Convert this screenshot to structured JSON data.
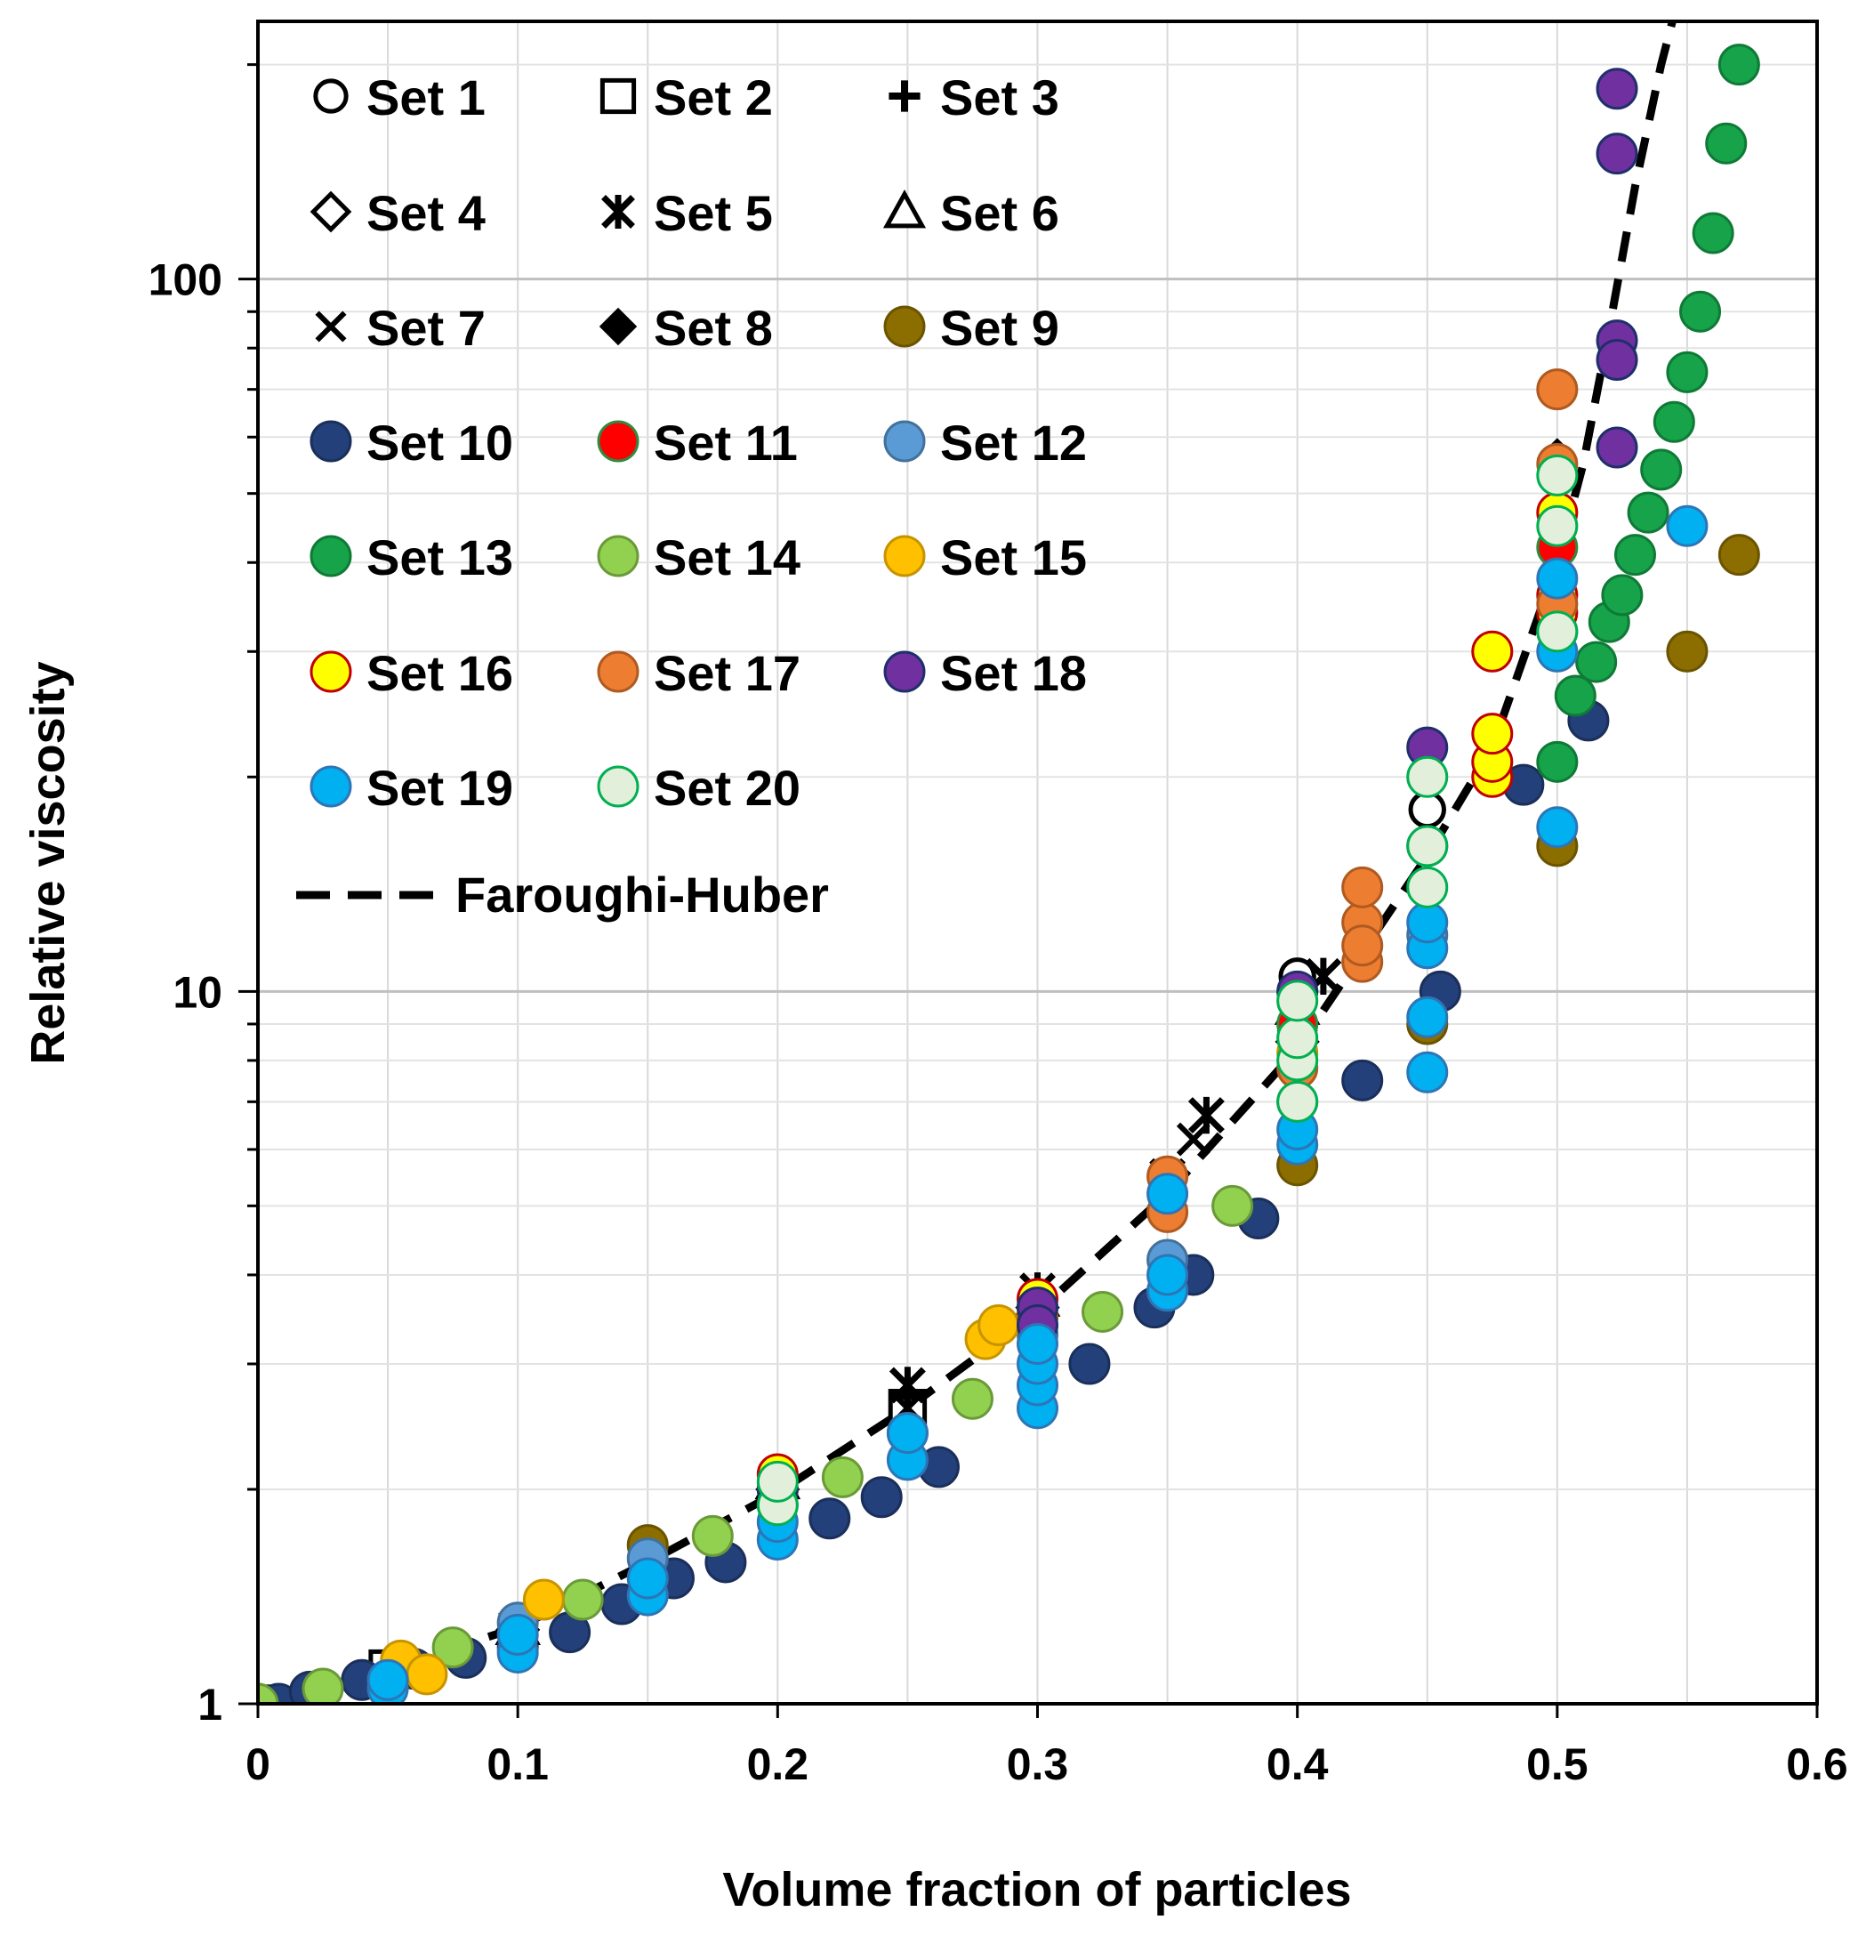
{
  "chart_data": {
    "type": "scatter",
    "title": "",
    "xlabel": "Volume fraction of particles",
    "ylabel": "Relative viscosity",
    "xlim": [
      0,
      0.6
    ],
    "ylim": [
      1,
      230
    ],
    "yscale": "log",
    "grid": true,
    "legend_position": "top-left",
    "x_ticks": [
      0,
      0.1,
      0.2,
      0.3,
      0.4,
      0.5,
      0.6
    ],
    "x_tick_labels": [
      "0",
      "0.1",
      "0.2",
      "0.3",
      "0.4",
      "0.5",
      "0.6"
    ],
    "y_ticks": [
      1,
      10,
      100
    ],
    "y_tick_labels": [
      "1",
      "10",
      "100"
    ],
    "series": [
      {
        "name": "Set 1",
        "marker": "circle-open",
        "fill": "#ffffff",
        "stroke": "#000000",
        "points": [
          [
            0,
            1
          ],
          [
            0.1,
            1.25
          ],
          [
            0.2,
            1.95
          ],
          [
            0.3,
            3.6
          ],
          [
            0.4,
            10.5
          ],
          [
            0.45,
            18
          ]
        ]
      },
      {
        "name": "Set 2",
        "marker": "square-open",
        "fill": "#ffffff",
        "stroke": "#000000",
        "points": [
          [
            0,
            1
          ],
          [
            0.05,
            1.12
          ],
          [
            0.1,
            1.26
          ],
          [
            0.15,
            1.6
          ],
          [
            0.2,
            2.0
          ],
          [
            0.25,
            2.6
          ],
          [
            0.3,
            3.5
          ]
        ]
      },
      {
        "name": "Set 3",
        "marker": "plus",
        "fill": "#000000",
        "stroke": "#000000",
        "points": [
          [
            0.1,
            1.3
          ],
          [
            0.15,
            1.62
          ],
          [
            0.2,
            2.0
          ],
          [
            0.25,
            2.7
          ],
          [
            0.3,
            3.7
          ]
        ]
      },
      {
        "name": "Set 4",
        "marker": "diamond-open",
        "fill": "#ffffff",
        "stroke": "#000000",
        "points": [
          [
            0.1,
            1.27
          ],
          [
            0.2,
            2.0
          ],
          [
            0.3,
            3.6
          ],
          [
            0.4,
            8.5
          ]
        ]
      },
      {
        "name": "Set 5",
        "marker": "asterisk",
        "fill": "#000000",
        "stroke": "#000000",
        "points": [
          [
            0.15,
            1.65
          ],
          [
            0.25,
            2.8
          ],
          [
            0.3,
            3.8
          ],
          [
            0.35,
            5.5
          ],
          [
            0.365,
            6.7
          ],
          [
            0.41,
            10.5
          ]
        ]
      },
      {
        "name": "Set 6",
        "marker": "triangle-open",
        "fill": "#ffffff",
        "stroke": "#000000",
        "points": [
          [
            0.1,
            1.28
          ],
          [
            0.2,
            2.05
          ],
          [
            0.3,
            3.7
          ],
          [
            0.4,
            9.5
          ]
        ]
      },
      {
        "name": "Set 7",
        "marker": "x",
        "fill": "#000000",
        "stroke": "#000000",
        "points": [
          [
            0.1,
            1.25
          ],
          [
            0.15,
            1.55
          ],
          [
            0.25,
            2.6
          ],
          [
            0.35,
            5.2
          ],
          [
            0.36,
            6.2
          ]
        ]
      },
      {
        "name": "Set 8",
        "marker": "diamond",
        "fill": "#000000",
        "stroke": "#000000",
        "points": [
          [
            0.2,
            1.95
          ],
          [
            0.3,
            3.5
          ],
          [
            0.35,
            5.0
          ],
          [
            0.4,
            8.8
          ],
          [
            0.5,
            56
          ]
        ]
      },
      {
        "name": "Set 9",
        "marker": "circle",
        "fill": "#8c6d00",
        "stroke": "#6b5400",
        "points": [
          [
            0,
            1
          ],
          [
            0.15,
            1.67
          ],
          [
            0.3,
            3.5
          ],
          [
            0.4,
            5.7
          ],
          [
            0.45,
            9
          ],
          [
            0.5,
            16
          ],
          [
            0.55,
            30
          ],
          [
            0.57,
            41
          ]
        ]
      },
      {
        "name": "Set 10",
        "marker": "circle",
        "fill": "#24407a",
        "stroke": "#1a2f5a",
        "points": [
          [
            0.008,
            1.0
          ],
          [
            0.02,
            1.04
          ],
          [
            0.04,
            1.08
          ],
          [
            0.06,
            1.12
          ],
          [
            0.08,
            1.16
          ],
          [
            0.1,
            1.2
          ],
          [
            0.12,
            1.26
          ],
          [
            0.14,
            1.38
          ],
          [
            0.16,
            1.5
          ],
          [
            0.18,
            1.58
          ],
          [
            0.22,
            1.82
          ],
          [
            0.24,
            1.95
          ],
          [
            0.262,
            2.15
          ],
          [
            0.32,
            3.0
          ],
          [
            0.345,
            3.6
          ],
          [
            0.36,
            4.0
          ],
          [
            0.385,
            4.8
          ],
          [
            0.425,
            7.5
          ],
          [
            0.455,
            10.0
          ],
          [
            0.487,
            19.5
          ],
          [
            0.512,
            24
          ]
        ]
      },
      {
        "name": "Set 11",
        "marker": "circle",
        "fill": "#ff0000",
        "stroke": "#2e8b3e",
        "points": [
          [
            0.2,
            2.0
          ],
          [
            0.3,
            3.6
          ],
          [
            0.4,
            9.0
          ],
          [
            0.5,
            42
          ]
        ]
      },
      {
        "name": "Set 12",
        "marker": "circle",
        "fill": "#5b9bd5",
        "stroke": "#41719c",
        "points": [
          [
            0.1,
            1.3
          ],
          [
            0.15,
            1.6
          ],
          [
            0.2,
            1.9
          ],
          [
            0.25,
            2.4
          ],
          [
            0.3,
            3.3
          ],
          [
            0.35,
            4.2
          ],
          [
            0.4,
            7.0
          ],
          [
            0.45,
            12
          ],
          [
            0.5,
            32
          ]
        ]
      },
      {
        "name": "Set 13",
        "marker": "circle",
        "fill": "#16a34a",
        "stroke": "#0f7a36",
        "points": [
          [
            0.5,
            21
          ],
          [
            0.507,
            26
          ],
          [
            0.515,
            29
          ],
          [
            0.52,
            33
          ],
          [
            0.525,
            36
          ],
          [
            0.53,
            41
          ],
          [
            0.535,
            47
          ],
          [
            0.54,
            54
          ],
          [
            0.545,
            63
          ],
          [
            0.55,
            74
          ],
          [
            0.555,
            90
          ],
          [
            0.56,
            116
          ],
          [
            0.565,
            155
          ],
          [
            0.57,
            200
          ]
        ]
      },
      {
        "name": "Set 14",
        "marker": "circle",
        "fill": "#92d050",
        "stroke": "#6a9a38",
        "points": [
          [
            0,
            1
          ],
          [
            0.025,
            1.05
          ],
          [
            0.075,
            1.2
          ],
          [
            0.125,
            1.4
          ],
          [
            0.175,
            1.72
          ],
          [
            0.225,
            2.08
          ],
          [
            0.275,
            2.68
          ],
          [
            0.325,
            3.55
          ],
          [
            0.375,
            5.0
          ]
        ]
      },
      {
        "name": "Set 15",
        "marker": "circle",
        "fill": "#ffc000",
        "stroke": "#c79400",
        "points": [
          [
            0.055,
            1.15
          ],
          [
            0.065,
            1.1
          ],
          [
            0.11,
            1.4
          ],
          [
            0.28,
            3.25
          ],
          [
            0.285,
            3.4
          ],
          [
            0.4,
            8.2
          ]
        ]
      },
      {
        "name": "Set 16",
        "marker": "circle",
        "fill": "#ffff00",
        "stroke": "#c00000",
        "points": [
          [
            0.2,
            2.1
          ],
          [
            0.3,
            3.7
          ],
          [
            0.475,
            20
          ],
          [
            0.475,
            21
          ],
          [
            0.475,
            23
          ],
          [
            0.475,
            30
          ],
          [
            0.5,
            34
          ],
          [
            0.5,
            36
          ],
          [
            0.5,
            47
          ]
        ]
      },
      {
        "name": "Set 17",
        "marker": "circle",
        "fill": "#ed7d31",
        "stroke": "#ae5a21",
        "points": [
          [
            0.3,
            3.5
          ],
          [
            0.35,
            5.5
          ],
          [
            0.35,
            4.9
          ],
          [
            0.4,
            7.8
          ],
          [
            0.425,
            11
          ],
          [
            0.425,
            12.5
          ],
          [
            0.425,
            11.6
          ],
          [
            0.425,
            14
          ],
          [
            0.5,
            70
          ],
          [
            0.5,
            55
          ],
          [
            0.5,
            35
          ]
        ]
      },
      {
        "name": "Set 18",
        "marker": "circle",
        "fill": "#7030a0",
        "stroke": "#1f2f6b",
        "points": [
          [
            0.2,
            2.0
          ],
          [
            0.3,
            3.6
          ],
          [
            0.3,
            3.4
          ],
          [
            0.4,
            10
          ],
          [
            0.45,
            22
          ],
          [
            0.45,
            16
          ],
          [
            0.523,
            185
          ],
          [
            0.523,
            150
          ],
          [
            0.523,
            82
          ],
          [
            0.523,
            77
          ],
          [
            0.523,
            58
          ]
        ]
      },
      {
        "name": "Set 19",
        "marker": "circle",
        "fill": "#00b0f0",
        "stroke": "#2e75b6",
        "points": [
          [
            0.05,
            1.05
          ],
          [
            0.05,
            1.08
          ],
          [
            0.1,
            1.18
          ],
          [
            0.1,
            1.25
          ],
          [
            0.15,
            1.42
          ],
          [
            0.15,
            1.5
          ],
          [
            0.2,
            1.7
          ],
          [
            0.2,
            1.8
          ],
          [
            0.25,
            2.2
          ],
          [
            0.25,
            2.4
          ],
          [
            0.3,
            2.6
          ],
          [
            0.3,
            2.8
          ],
          [
            0.3,
            3.0
          ],
          [
            0.3,
            3.2
          ],
          [
            0.35,
            3.8
          ],
          [
            0.35,
            4.0
          ],
          [
            0.35,
            5.2
          ],
          [
            0.4,
            6.1
          ],
          [
            0.4,
            6.4
          ],
          [
            0.45,
            7.7
          ],
          [
            0.45,
            9.2
          ],
          [
            0.45,
            11.5
          ],
          [
            0.45,
            12.5
          ],
          [
            0.5,
            17
          ],
          [
            0.5,
            30
          ],
          [
            0.5,
            38
          ],
          [
            0.55,
            45
          ]
        ]
      },
      {
        "name": "Set 20",
        "marker": "circle",
        "fill": "#e2efda",
        "stroke": "#00b050",
        "points": [
          [
            0.2,
            1.9
          ],
          [
            0.2,
            2.05
          ],
          [
            0.4,
            7.0
          ],
          [
            0.4,
            8.0
          ],
          [
            0.4,
            8.6
          ],
          [
            0.4,
            9.7
          ],
          [
            0.45,
            14
          ],
          [
            0.45,
            16
          ],
          [
            0.45,
            20
          ],
          [
            0.5,
            32
          ],
          [
            0.5,
            45
          ],
          [
            0.5,
            53
          ]
        ]
      }
    ],
    "model_curve": {
      "name": "Faroughi-Huber",
      "style": "dashed",
      "color": "#000000",
      "points": [
        [
          0,
          1
        ],
        [
          0.05,
          1.12
        ],
        [
          0.1,
          1.28
        ],
        [
          0.15,
          1.58
        ],
        [
          0.2,
          1.98
        ],
        [
          0.25,
          2.6
        ],
        [
          0.3,
          3.55
        ],
        [
          0.35,
          5.2
        ],
        [
          0.4,
          8.3
        ],
        [
          0.45,
          15.5
        ],
        [
          0.475,
          22
        ],
        [
          0.5,
          40
        ],
        [
          0.51,
          55
        ],
        [
          0.52,
          85
        ],
        [
          0.53,
          135
        ],
        [
          0.54,
          200
        ],
        [
          0.545,
          235
        ]
      ]
    }
  }
}
